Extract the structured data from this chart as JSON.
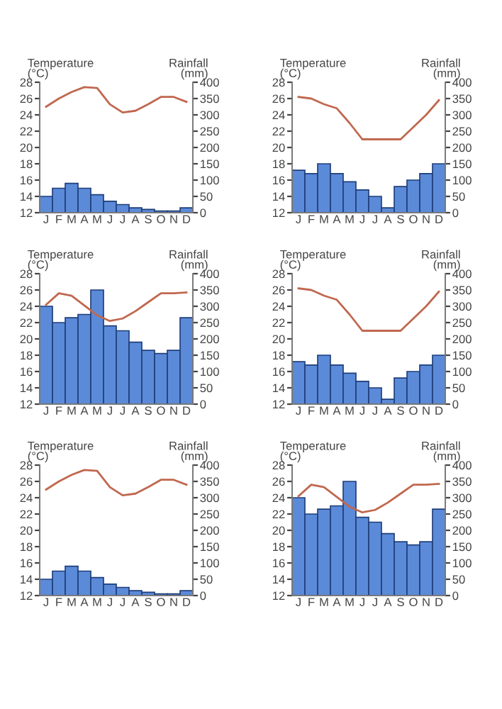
{
  "chart_data": [
    {
      "type": "bar",
      "ylabel": "Temperature\n(°C)",
      "y2label": "Rainfall\n(mm)",
      "categories": [
        "J",
        "F",
        "M",
        "A",
        "M",
        "J",
        "J",
        "A",
        "S",
        "O",
        "N",
        "D"
      ],
      "ylim": [
        12,
        28
      ],
      "yticks": [
        12,
        14,
        16,
        18,
        20,
        22,
        24,
        26,
        28
      ],
      "y2lim": [
        0,
        400
      ],
      "y2ticks": [
        0,
        50,
        100,
        150,
        200,
        250,
        300,
        350,
        400
      ],
      "series": [
        {
          "axis": "y2",
          "color": "#5b8ad8",
          "values": [
            50,
            75,
            90,
            75,
            55,
            35,
            25,
            15,
            10,
            5,
            5,
            15
          ]
        },
        {
          "type": "line",
          "color": "#c0684f",
          "values": [
            25,
            26,
            26.8,
            27.4,
            27.3,
            25.3,
            24.3,
            24.5,
            25.3,
            26.2,
            26.2,
            25.6
          ]
        }
      ]
    },
    {
      "type": "bar",
      "ylabel": "Temperature\n(°C)",
      "y2label": "Rainfall\n(mm)",
      "categories": [
        "J",
        "F",
        "M",
        "A",
        "M",
        "J",
        "J",
        "A",
        "S",
        "O",
        "N",
        "D"
      ],
      "ylim": [
        12,
        28
      ],
      "yticks": [
        12,
        14,
        16,
        18,
        20,
        22,
        24,
        26,
        28
      ],
      "y2lim": [
        0,
        400
      ],
      "y2ticks": [
        0,
        50,
        100,
        150,
        200,
        250,
        300,
        350,
        400
      ],
      "series": [
        {
          "axis": "y2",
          "color": "#5b8ad8",
          "values": [
            130,
            120,
            150,
            120,
            95,
            70,
            50,
            15,
            80,
            100,
            120,
            150
          ]
        },
        {
          "type": "line",
          "color": "#c0684f",
          "values": [
            26.2,
            26,
            25.3,
            24.8,
            23,
            21,
            21,
            21,
            21,
            22.5,
            24,
            25.8
          ]
        }
      ]
    },
    {
      "type": "bar",
      "ylabel": "Temperature\n(°C)",
      "y2label": "Rainfall\n(mm)",
      "categories": [
        "J",
        "F",
        "M",
        "A",
        "M",
        "J",
        "J",
        "A",
        "S",
        "O",
        "N",
        "D"
      ],
      "ylim": [
        12,
        28
      ],
      "yticks": [
        12,
        14,
        16,
        18,
        20,
        22,
        24,
        26,
        28
      ],
      "y2lim": [
        0,
        400
      ],
      "y2ticks": [
        0,
        50,
        100,
        150,
        200,
        250,
        300,
        350,
        400
      ],
      "series": [
        {
          "axis": "y2",
          "color": "#5b8ad8",
          "values": [
            300,
            250,
            265,
            275,
            350,
            240,
            225,
            190,
            165,
            155,
            165,
            265
          ]
        },
        {
          "type": "line",
          "color": "#c0684f",
          "values": [
            24.2,
            25.6,
            25.3,
            24.1,
            22.9,
            22.2,
            22.5,
            23.4,
            24.5,
            25.6,
            25.6,
            25.7
          ]
        }
      ]
    },
    {
      "type": "bar",
      "ylabel": "Temperature\n(°C)",
      "y2label": "Rainfall\n(mm)",
      "categories": [
        "J",
        "F",
        "M",
        "A",
        "M",
        "J",
        "J",
        "A",
        "S",
        "O",
        "N",
        "D"
      ],
      "ylim": [
        12,
        28
      ],
      "yticks": [
        12,
        14,
        16,
        18,
        20,
        22,
        24,
        26,
        28
      ],
      "y2lim": [
        0,
        400
      ],
      "y2ticks": [
        0,
        50,
        100,
        150,
        200,
        250,
        300,
        350,
        400
      ],
      "series": [
        {
          "axis": "y2",
          "color": "#5b8ad8",
          "values": [
            130,
            120,
            150,
            120,
            95,
            70,
            50,
            15,
            80,
            100,
            120,
            150
          ]
        },
        {
          "type": "line",
          "color": "#c0684f",
          "values": [
            26.2,
            26,
            25.3,
            24.8,
            23,
            21,
            21,
            21,
            21,
            22.5,
            24,
            25.8
          ]
        }
      ]
    },
    {
      "type": "bar",
      "ylabel": "Temperature\n(°C)",
      "y2label": "Rainfall\n(mm)",
      "categories": [
        "J",
        "F",
        "M",
        "A",
        "M",
        "J",
        "J",
        "A",
        "S",
        "O",
        "N",
        "D"
      ],
      "ylim": [
        12,
        28
      ],
      "yticks": [
        12,
        14,
        16,
        18,
        20,
        22,
        24,
        26,
        28
      ],
      "y2lim": [
        0,
        400
      ],
      "y2ticks": [
        0,
        50,
        100,
        150,
        200,
        250,
        300,
        350,
        400
      ],
      "series": [
        {
          "axis": "y2",
          "color": "#5b8ad8",
          "values": [
            50,
            75,
            90,
            75,
            55,
            35,
            25,
            15,
            10,
            5,
            5,
            15
          ]
        },
        {
          "type": "line",
          "color": "#c0684f",
          "values": [
            25,
            26,
            26.8,
            27.4,
            27.3,
            25.3,
            24.3,
            24.5,
            25.3,
            26.2,
            26.2,
            25.6
          ]
        }
      ]
    },
    {
      "type": "bar",
      "ylabel": "Temperature\n(°C)",
      "y2label": "Rainfall\n(mm)",
      "categories": [
        "J",
        "F",
        "M",
        "A",
        "M",
        "J",
        "J",
        "A",
        "S",
        "O",
        "N",
        "D"
      ],
      "ylim": [
        12,
        28
      ],
      "yticks": [
        12,
        14,
        16,
        18,
        20,
        22,
        24,
        26,
        28
      ],
      "y2lim": [
        0,
        400
      ],
      "y2ticks": [
        0,
        50,
        100,
        150,
        200,
        250,
        300,
        350,
        400
      ],
      "series": [
        {
          "axis": "y2",
          "color": "#5b8ad8",
          "values": [
            300,
            250,
            265,
            275,
            350,
            240,
            225,
            190,
            165,
            155,
            165,
            265
          ]
        },
        {
          "type": "line",
          "color": "#c0684f",
          "values": [
            24.2,
            25.6,
            25.3,
            24.1,
            22.9,
            22.2,
            22.5,
            23.4,
            24.5,
            25.6,
            25.6,
            25.7
          ]
        }
      ]
    }
  ]
}
